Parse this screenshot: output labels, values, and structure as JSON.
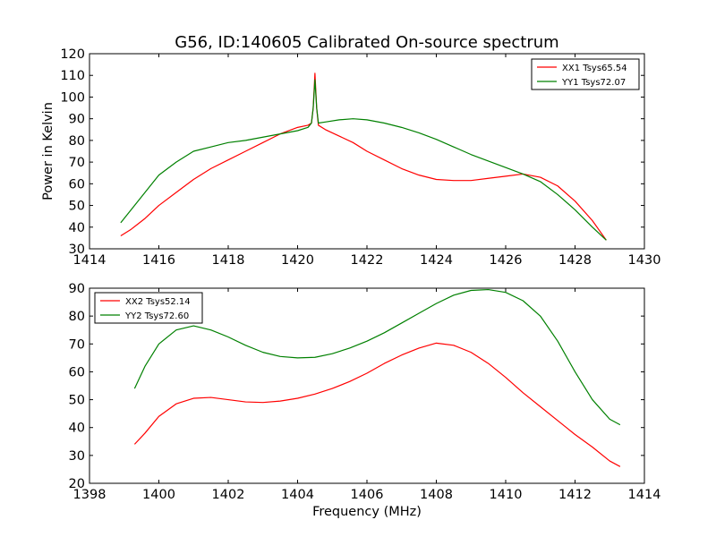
{
  "chart_data": [
    {
      "type": "line",
      "title": "G56, ID:140605 Calibrated On-source spectrum",
      "xlabel": "",
      "ylabel": "Power in Kelvin",
      "xlim": [
        1414,
        1430
      ],
      "ylim": [
        30,
        120
      ],
      "xticks": [
        1414,
        1416,
        1418,
        1420,
        1422,
        1424,
        1426,
        1428,
        1430
      ],
      "yticks": [
        30,
        40,
        50,
        60,
        70,
        80,
        90,
        100,
        110,
        120
      ],
      "legend_position": "top-right",
      "series": [
        {
          "name": "XX1 Tsys65.54",
          "color": "#ff0000",
          "x": [
            1414.9,
            1415.2,
            1415.6,
            1416.0,
            1416.5,
            1417.0,
            1417.5,
            1418.0,
            1418.5,
            1419.0,
            1419.5,
            1420.0,
            1420.3,
            1420.4,
            1420.45,
            1420.5,
            1420.55,
            1420.6,
            1420.8,
            1421.2,
            1421.6,
            1422.0,
            1422.5,
            1423.0,
            1423.5,
            1424.0,
            1424.5,
            1425.0,
            1425.5,
            1426.0,
            1426.5,
            1427.0,
            1427.5,
            1428.0,
            1428.5,
            1428.9
          ],
          "y": [
            36,
            39,
            44,
            50,
            56,
            62,
            67,
            71,
            75,
            79,
            83,
            86,
            87,
            88,
            95,
            111,
            95,
            87,
            85,
            82,
            79,
            75,
            71,
            67,
            64,
            62,
            61.5,
            61.5,
            62.5,
            63.5,
            64.5,
            63,
            59,
            52,
            43,
            34
          ]
        },
        {
          "name": "YY1 Tsys72.07",
          "color": "#008000",
          "x": [
            1414.9,
            1415.2,
            1415.6,
            1416.0,
            1416.5,
            1417.0,
            1417.5,
            1418.0,
            1418.5,
            1419.0,
            1419.5,
            1420.0,
            1420.3,
            1420.4,
            1420.45,
            1420.5,
            1420.55,
            1420.6,
            1420.8,
            1421.2,
            1421.6,
            1422.0,
            1422.5,
            1423.0,
            1423.5,
            1424.0,
            1424.5,
            1425.0,
            1425.5,
            1426.0,
            1426.5,
            1427.0,
            1427.5,
            1428.0,
            1428.5,
            1428.9
          ],
          "y": [
            42,
            48,
            56,
            64,
            70,
            75,
            77,
            79,
            80,
            81.5,
            83,
            84.5,
            86,
            88,
            95,
            108,
            95,
            88,
            88.5,
            89.5,
            90,
            89.5,
            88,
            86,
            83.5,
            80.5,
            77,
            73.5,
            70.5,
            67.5,
            64.5,
            61,
            55,
            48,
            40,
            34
          ]
        }
      ]
    },
    {
      "type": "line",
      "title": "",
      "xlabel": "Frequency (MHz)",
      "ylabel": "",
      "xlim": [
        1398,
        1414
      ],
      "ylim": [
        20,
        90
      ],
      "xticks": [
        1398,
        1400,
        1402,
        1404,
        1406,
        1408,
        1410,
        1412,
        1414
      ],
      "yticks": [
        20,
        30,
        40,
        50,
        60,
        70,
        80,
        90
      ],
      "legend_position": "top-left",
      "series": [
        {
          "name": "XX2 Tsys52.14",
          "color": "#ff0000",
          "x": [
            1399.3,
            1399.6,
            1400.0,
            1400.5,
            1401.0,
            1401.5,
            1402.0,
            1402.5,
            1403.0,
            1403.5,
            1404.0,
            1404.5,
            1405.0,
            1405.5,
            1406.0,
            1406.5,
            1407.0,
            1407.5,
            1408.0,
            1408.5,
            1409.0,
            1409.5,
            1410.0,
            1410.5,
            1411.0,
            1411.5,
            1412.0,
            1412.5,
            1413.0,
            1413.3
          ],
          "y": [
            34,
            38,
            44,
            48.5,
            50.5,
            50.8,
            50,
            49.2,
            49,
            49.5,
            50.5,
            52,
            54,
            56.5,
            59.5,
            63,
            66,
            68.5,
            70.3,
            69.5,
            67,
            63,
            58,
            52.5,
            47.5,
            42.5,
            37.5,
            33,
            28,
            26
          ]
        },
        {
          "name": "YY2 Tsys72.60",
          "color": "#008000",
          "x": [
            1399.3,
            1399.6,
            1400.0,
            1400.5,
            1401.0,
            1401.5,
            1402.0,
            1402.5,
            1403.0,
            1403.5,
            1404.0,
            1404.5,
            1405.0,
            1405.5,
            1406.0,
            1406.5,
            1407.0,
            1407.5,
            1408.0,
            1408.5,
            1409.0,
            1409.5,
            1410.0,
            1410.5,
            1411.0,
            1411.5,
            1412.0,
            1412.5,
            1413.0,
            1413.3
          ],
          "y": [
            54,
            62,
            70,
            75,
            76.5,
            75,
            72.5,
            69.5,
            67,
            65.5,
            65,
            65.2,
            66.5,
            68.5,
            71,
            74,
            77.5,
            81,
            84.5,
            87.5,
            89.2,
            89.5,
            88.5,
            85.5,
            80,
            71,
            60,
            50,
            43,
            41
          ]
        }
      ]
    }
  ]
}
